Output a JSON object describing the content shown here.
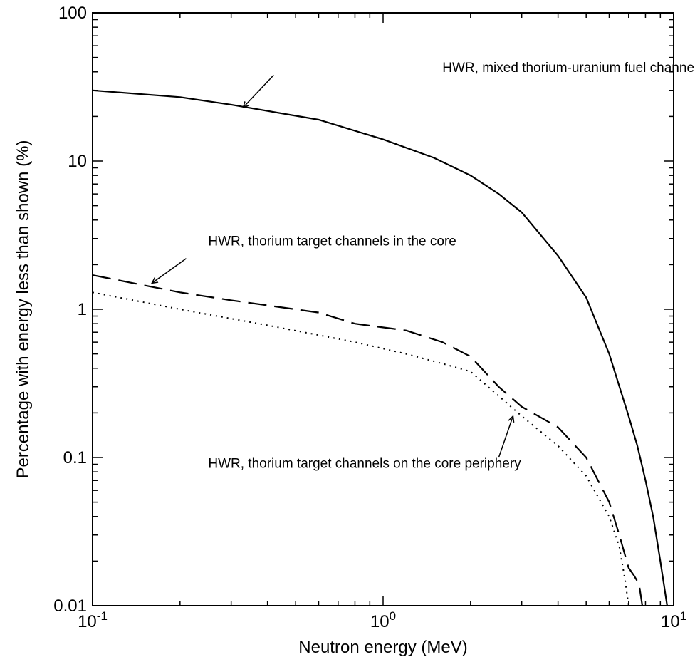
{
  "chart_data": {
    "type": "line",
    "title": "",
    "xlabel": "Neutron energy (MeV)",
    "ylabel": "Percentage with energy less than shown (%)",
    "xscale": "log",
    "yscale": "log",
    "xlim": [
      0.1,
      10
    ],
    "ylim": [
      0.01,
      100
    ],
    "grid": false,
    "legend": "none",
    "x_ticks": [
      {
        "value": 0.1,
        "base": "10",
        "exp": "-1"
      },
      {
        "value": 1,
        "base": "10",
        "exp": "0"
      },
      {
        "value": 10,
        "base": "10",
        "exp": "1"
      }
    ],
    "y_ticks": [
      {
        "value": 0.01,
        "label": "0.01"
      },
      {
        "value": 0.1,
        "label": "0.1"
      },
      {
        "value": 1,
        "label": "1"
      },
      {
        "value": 10,
        "label": "10"
      },
      {
        "value": 100,
        "label": "100"
      }
    ],
    "series": [
      {
        "name": "HWR, mixed thorium-uranium fuel channel",
        "style": "solid",
        "x": [
          0.1,
          0.2,
          0.3,
          0.6,
          1.0,
          1.5,
          2.0,
          2.5,
          3.0,
          4.0,
          5.0,
          6.0,
          7.0,
          7.5,
          8.0,
          8.5,
          9.0,
          9.5
        ],
        "y": [
          30,
          27,
          24,
          19,
          14,
          10.5,
          8,
          6,
          4.5,
          2.3,
          1.2,
          0.5,
          0.19,
          0.12,
          0.07,
          0.04,
          0.02,
          0.01
        ]
      },
      {
        "name": "HWR, thorium target channels in the core",
        "style": "dashed",
        "x": [
          0.1,
          0.2,
          0.3,
          0.6,
          0.8,
          1.2,
          1.6,
          2.0,
          2.5,
          3.0,
          4.0,
          5.0,
          6.0,
          6.5,
          7.0,
          7.3,
          7.6,
          7.8
        ],
        "y": [
          1.7,
          1.3,
          1.15,
          0.95,
          0.8,
          0.72,
          0.6,
          0.48,
          0.3,
          0.22,
          0.16,
          0.1,
          0.05,
          0.03,
          0.018,
          0.016,
          0.014,
          0.01
        ]
      },
      {
        "name": "HWR, thorium target channels on the core periphery",
        "style": "dotted",
        "x": [
          0.1,
          0.2,
          0.4,
          0.8,
          1.2,
          1.6,
          2.0,
          2.5,
          3.0,
          4.0,
          5.0,
          6.0,
          6.5,
          6.8,
          7.0
        ],
        "y": [
          1.3,
          1.0,
          0.78,
          0.6,
          0.5,
          0.43,
          0.38,
          0.26,
          0.19,
          0.12,
          0.075,
          0.04,
          0.025,
          0.015,
          0.01
        ]
      }
    ],
    "annotations": [
      {
        "text": "HWR, mixed thorium-uranium fuel channel",
        "text_at": [
          1.6,
          40
        ],
        "arrow_from": [
          0.42,
          38
        ],
        "arrow_to": [
          0.33,
          23
        ]
      },
      {
        "text": "HWR, thorium target channels in the core",
        "text_at": [
          0.25,
          2.7
        ],
        "arrow_from": [
          0.21,
          2.2
        ],
        "arrow_to": [
          0.16,
          1.5
        ]
      },
      {
        "text": "HWR, thorium target channels on the core periphery",
        "text_at": [
          0.25,
          0.085
        ],
        "arrow_from": [
          2.5,
          0.1
        ],
        "arrow_to": [
          2.8,
          0.19
        ]
      }
    ]
  }
}
